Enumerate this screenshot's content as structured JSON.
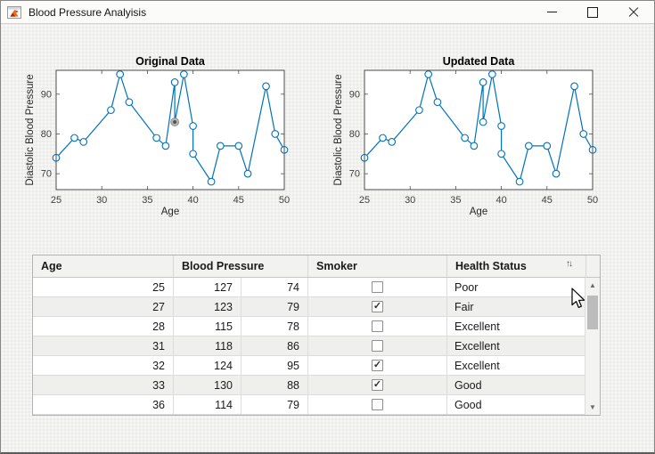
{
  "window": {
    "title": "Blood Pressure Analyisis",
    "controls": [
      {
        "name": "minimize"
      },
      {
        "name": "maximize"
      },
      {
        "name": "close"
      }
    ]
  },
  "colors": {
    "accent_line": "#0072BD",
    "app_background": "#f1f1ef",
    "plot_background": "#ffffff",
    "axis_color": "#4d4d4d",
    "highlight_marker": "#6e6e6e"
  },
  "chart_data": [
    {
      "type": "line",
      "title": "Original Data",
      "xlabel": "Age",
      "ylabel": "Diastolic Blood Pressure",
      "x": [
        25,
        27,
        28,
        31,
        32,
        33,
        36,
        37,
        38,
        38,
        39,
        40,
        40,
        42,
        43,
        45,
        46,
        48,
        49,
        50
      ],
      "y": [
        74,
        79,
        78,
        86,
        95,
        88,
        79,
        77,
        93,
        83,
        95,
        82,
        75,
        68,
        77,
        77,
        70,
        92,
        80,
        76
      ],
      "xlim": [
        25,
        50
      ],
      "ylim": [
        66,
        96
      ],
      "xticks": [
        25,
        30,
        35,
        40,
        45,
        50
      ],
      "yticks": [
        70,
        80,
        90
      ],
      "grid": false,
      "legend": null,
      "line_color": "#0072BD",
      "marker": "open-circle",
      "highlight_point": {
        "index": 9,
        "x": 38,
        "y": 83,
        "style": "gray-filled"
      }
    },
    {
      "type": "line",
      "title": "Updated Data",
      "xlabel": "Age",
      "ylabel": "Diastolic Blood Pressure",
      "x": [
        25,
        27,
        28,
        31,
        32,
        33,
        36,
        37,
        38,
        38,
        39,
        40,
        40,
        42,
        43,
        45,
        46,
        48,
        49,
        50
      ],
      "y": [
        74,
        79,
        78,
        86,
        95,
        88,
        79,
        77,
        93,
        83,
        95,
        82,
        75,
        68,
        77,
        77,
        70,
        92,
        80,
        76
      ],
      "xlim": [
        25,
        50
      ],
      "ylim": [
        66,
        96
      ],
      "xticks": [
        25,
        30,
        35,
        40,
        45,
        50
      ],
      "yticks": [
        70,
        80,
        90
      ],
      "grid": false,
      "legend": null,
      "line_color": "#0072BD",
      "marker": "open-circle",
      "highlight_point": null
    }
  ],
  "table": {
    "headers": [
      "Age",
      "Blood Pressure",
      "Smoker",
      "Health Status"
    ],
    "sort_icon": "↑↓",
    "rows": [
      {
        "age": "25",
        "systolic": "127",
        "diastolic": "74",
        "smoker": false,
        "health_status": "Poor"
      },
      {
        "age": "27",
        "systolic": "123",
        "diastolic": "79",
        "smoker": true,
        "health_status": "Fair"
      },
      {
        "age": "28",
        "systolic": "115",
        "diastolic": "78",
        "smoker": false,
        "health_status": "Excellent"
      },
      {
        "age": "31",
        "systolic": "118",
        "diastolic": "86",
        "smoker": false,
        "health_status": "Excellent"
      },
      {
        "age": "32",
        "systolic": "124",
        "diastolic": "95",
        "smoker": true,
        "health_status": "Excellent"
      },
      {
        "age": "33",
        "systolic": "130",
        "diastolic": "88",
        "smoker": true,
        "health_status": "Good"
      },
      {
        "age": "36",
        "systolic": "114",
        "diastolic": "79",
        "smoker": false,
        "health_status": "Good"
      }
    ],
    "scrollbar": {
      "up_glyph": "▲",
      "down_glyph": "▼"
    }
  }
}
